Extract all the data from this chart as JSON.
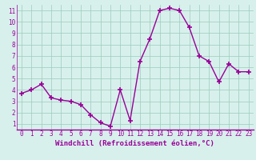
{
  "x": [
    0,
    1,
    2,
    3,
    4,
    5,
    6,
    7,
    8,
    9,
    10,
    11,
    12,
    13,
    14,
    15,
    16,
    17,
    18,
    19,
    20,
    21,
    22,
    23
  ],
  "y": [
    3.7,
    4.0,
    4.5,
    3.3,
    3.1,
    3.0,
    2.7,
    1.8,
    1.1,
    0.8,
    4.0,
    1.3,
    6.5,
    8.5,
    11.0,
    11.2,
    11.0,
    9.5,
    7.0,
    6.5,
    4.7,
    6.3,
    5.6,
    5.6
  ],
  "line_color": "#990099",
  "marker": "+",
  "markersize": 4,
  "linewidth": 1.0,
  "xlabel": "Windchill (Refroidissement éolien,°C)",
  "xlabel_fontsize": 6.5,
  "xlim": [
    -0.5,
    23.5
  ],
  "ylim": [
    0.5,
    11.5
  ],
  "yticks": [
    1,
    2,
    3,
    4,
    5,
    6,
    7,
    8,
    9,
    10,
    11
  ],
  "xticks": [
    0,
    1,
    2,
    3,
    4,
    5,
    6,
    7,
    8,
    9,
    10,
    11,
    12,
    13,
    14,
    15,
    16,
    17,
    18,
    19,
    20,
    21,
    22,
    23
  ],
  "grid_color": "#99ccbb",
  "background_color": "#d8f0ec",
  "tick_color": "#990099",
  "tick_fontsize": 5.5,
  "xlabel_color": "#990099",
  "spine_color": "#990099"
}
